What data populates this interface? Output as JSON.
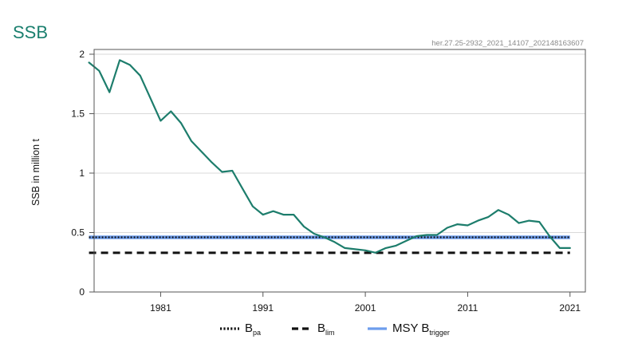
{
  "page": {
    "title": "SSB",
    "source_id": "her.27.25-2932_2021_14107_202148163607"
  },
  "colors": {
    "title": "#1a7f6e",
    "ssb_line": "#1d7d6c",
    "msy_btrigger": "#6d9ded",
    "bpa": "#111111",
    "blim": "#111111",
    "grid": "#d9d9d9",
    "axis": "#555555",
    "source_id": "#8a8a8a"
  },
  "chart_data": {
    "type": "line",
    "title": "SSB",
    "xlabel": "",
    "ylabel": "SSB in million t",
    "xlim": [
      1974.5,
      2022.5
    ],
    "ylim": [
      0,
      2.04
    ],
    "x_ticks": [
      1981,
      1991,
      2001,
      2011,
      2021
    ],
    "y_ticks": [
      0,
      0.5,
      1,
      1.5,
      2
    ],
    "y_tick_labels": [
      "0",
      "0.5",
      "1",
      "1.5",
      "2"
    ],
    "grid": "horizontal",
    "series": [
      {
        "name": "SSB",
        "style": "solid",
        "x": [
          1974,
          1975,
          1976,
          1977,
          1978,
          1979,
          1980,
          1981,
          1982,
          1983,
          1984,
          1985,
          1986,
          1987,
          1988,
          1989,
          1990,
          1991,
          1992,
          1993,
          1994,
          1995,
          1996,
          1997,
          1998,
          1999,
          2000,
          2001,
          2002,
          2003,
          2004,
          2005,
          2006,
          2007,
          2008,
          2009,
          2010,
          2011,
          2012,
          2013,
          2014,
          2015,
          2016,
          2017,
          2018,
          2019,
          2020,
          2021
        ],
        "values": [
          1.93,
          1.86,
          1.68,
          1.95,
          1.91,
          1.82,
          1.63,
          1.44,
          1.52,
          1.42,
          1.27,
          1.18,
          1.09,
          1.01,
          1.02,
          0.87,
          0.72,
          0.65,
          0.68,
          0.65,
          0.65,
          0.55,
          0.49,
          0.46,
          0.42,
          0.37,
          0.36,
          0.35,
          0.33,
          0.37,
          0.39,
          0.43,
          0.47,
          0.48,
          0.48,
          0.54,
          0.57,
          0.56,
          0.6,
          0.63,
          0.69,
          0.65,
          0.58,
          0.6,
          0.59,
          0.47,
          0.37,
          0.37
        ]
      }
    ],
    "reference_lines": [
      {
        "name": "Bpa",
        "label": "B",
        "subscript": "pa",
        "style": "dotted",
        "value": 0.46
      },
      {
        "name": "Blim",
        "label": "B",
        "subscript": "lim",
        "style": "dashed",
        "value": 0.33
      },
      {
        "name": "MSY Btrigger",
        "label": "MSY B",
        "subscript": "trigger",
        "style": "solid",
        "value": 0.46
      }
    ],
    "legend_position": "bottom"
  }
}
